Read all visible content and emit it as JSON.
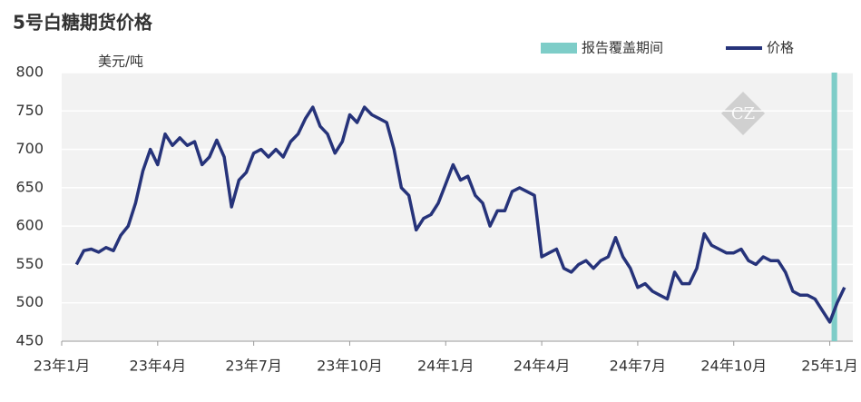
{
  "chart_data": {
    "type": "line",
    "title": "5号白糖期货价格",
    "y_label": "美元/吨",
    "categories": [
      "23年1月",
      null,
      null,
      null,
      null,
      null,
      null,
      null,
      null,
      null,
      null,
      null,
      null,
      "23年4月",
      null,
      null,
      null,
      null,
      null,
      null,
      null,
      null,
      null,
      null,
      null,
      null,
      "23年7月",
      null,
      null,
      null,
      null,
      null,
      null,
      null,
      null,
      null,
      null,
      null,
      null,
      "23年10月",
      null,
      null,
      null,
      null,
      null,
      null,
      null,
      null,
      null,
      null,
      null,
      null,
      "24年1月",
      null,
      null,
      null,
      null,
      null,
      null,
      null,
      null,
      null,
      null,
      null,
      null,
      "24年4月",
      null,
      null,
      null,
      null,
      null,
      null,
      null,
      null,
      null,
      null,
      null,
      null,
      "24年7月",
      null,
      null,
      null,
      null,
      null,
      null,
      null,
      null,
      null,
      null,
      null,
      null,
      "24年10月",
      null,
      null,
      null,
      null,
      null,
      null,
      null,
      null,
      null,
      null,
      null,
      null,
      "25年1月",
      null,
      null
    ],
    "series": [
      {
        "name": "价格",
        "color": "#26337a",
        "values": [
          null,
          null,
          550,
          568,
          570,
          566,
          572,
          568,
          588,
          600,
          630,
          672,
          700,
          680,
          720,
          705,
          715,
          705,
          710,
          680,
          690,
          712,
          690,
          625,
          660,
          670,
          695,
          700,
          690,
          700,
          690,
          710,
          720,
          740,
          755,
          730,
          720,
          695,
          710,
          745,
          735,
          755,
          745,
          740,
          735,
          700,
          650,
          640,
          595,
          610,
          615,
          630,
          655,
          680,
          660,
          665,
          640,
          630,
          600,
          620,
          620,
          645,
          650,
          645,
          640,
          560,
          565,
          570,
          545,
          540,
          550,
          555,
          545,
          555,
          560,
          585,
          560,
          545,
          520,
          525,
          515,
          510,
          505,
          540,
          525,
          525,
          545,
          590,
          575,
          570,
          565,
          565,
          570,
          555,
          550,
          560,
          555,
          555,
          540,
          515,
          510,
          510,
          505,
          490,
          475,
          500,
          520
        ]
      }
    ],
    "band": {
      "name": "报告覆盖期间",
      "color": "#7ecdc8",
      "from": 104,
      "to": 105
    },
    "ylim": [
      450,
      800
    ],
    "yticks": [
      450,
      500,
      550,
      600,
      650,
      700,
      750,
      800
    ],
    "grid": true
  }
}
